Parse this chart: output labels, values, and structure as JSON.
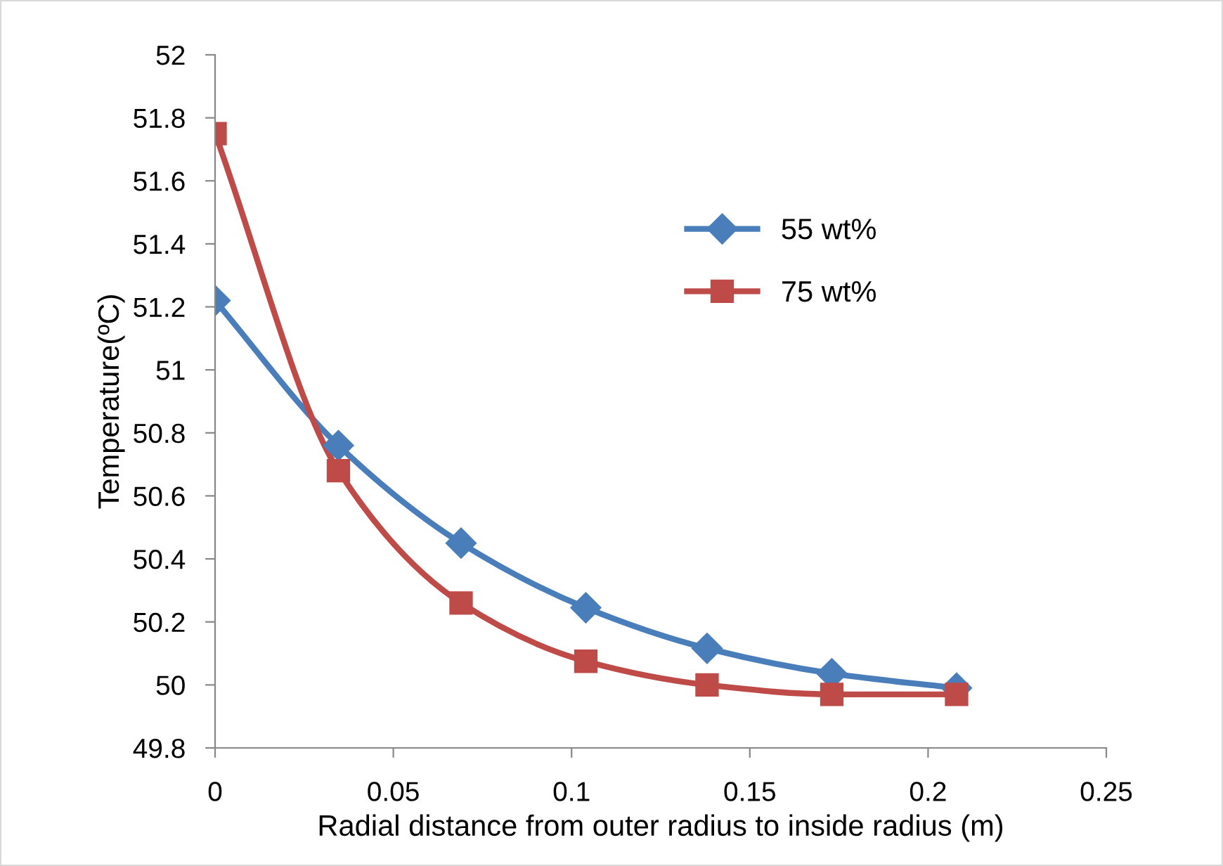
{
  "chart_data": {
    "type": "line",
    "xlabel": "Radial distance from outer radius to inside radius (m)",
    "ylabel": "Temperature(ºC)",
    "xlim": [
      0,
      0.25
    ],
    "xticks": [
      0,
      0.05,
      0.1,
      0.15,
      0.2,
      0.25
    ],
    "ylim": [
      49.8,
      52
    ],
    "yticks": [
      49.8,
      50,
      50.2,
      50.4,
      50.6,
      50.8,
      51,
      51.2,
      51.4,
      51.6,
      51.8,
      52
    ],
    "grid": false,
    "legend": "right",
    "x": [
      0,
      0.0346,
      0.069,
      0.104,
      0.138,
      0.173,
      0.208
    ],
    "series": [
      {
        "name": "55 wt%",
        "color": "#4a7ebb",
        "marker": "diamond",
        "values": [
          51.22,
          50.76,
          50.45,
          50.245,
          50.116,
          50.036,
          49.99
        ]
      },
      {
        "name": "75 wt%",
        "color": "#be4b48",
        "marker": "square",
        "values": [
          51.75,
          50.68,
          50.26,
          50.075,
          50.0,
          49.97,
          49.97
        ]
      }
    ]
  }
}
